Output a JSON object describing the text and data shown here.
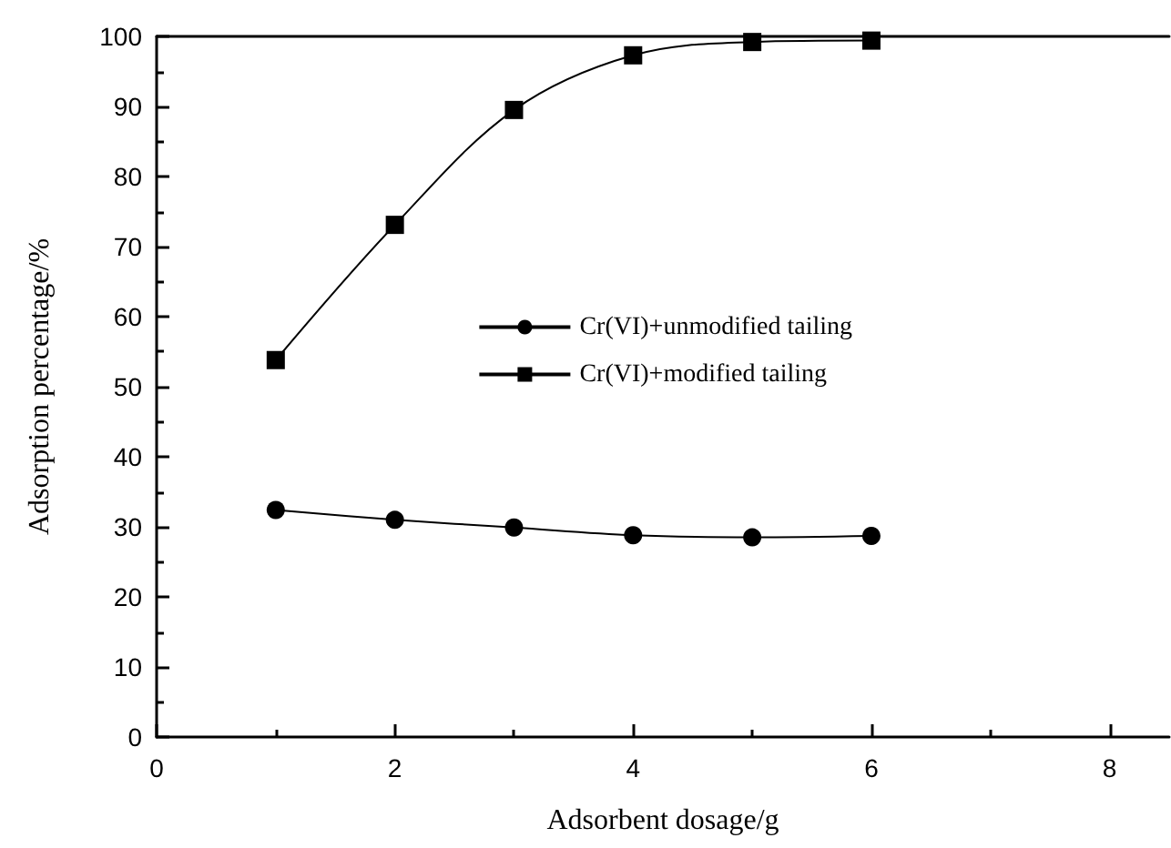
{
  "chart_data": {
    "type": "line",
    "xlabel": "Adsorbent dosage/g",
    "ylabel": "Adsorption percentage/%",
    "x": [
      1,
      2,
      3,
      4,
      5,
      6
    ],
    "series": [
      {
        "name": "Cr(VI)+unmodified tailing",
        "color": "#000000",
        "marker": "circle",
        "values": [
          32.4,
          31.0,
          29.9,
          28.8,
          28.5,
          28.7
        ]
      },
      {
        "name": "Cr(VI)+modified tailing",
        "color": "#000000",
        "marker": "square",
        "values": [
          53.8,
          73.1,
          89.5,
          97.3,
          99.2,
          99.4
        ]
      }
    ],
    "xlim": [
      0,
      8.5
    ],
    "xticks": [
      0,
      2,
      4,
      6,
      8
    ],
    "ylim": [
      0,
      100
    ],
    "yticks": [
      0,
      10,
      20,
      30,
      40,
      50,
      60,
      70,
      80,
      90,
      100
    ],
    "grid": false,
    "legend": "center",
    "line_style": "solid"
  }
}
